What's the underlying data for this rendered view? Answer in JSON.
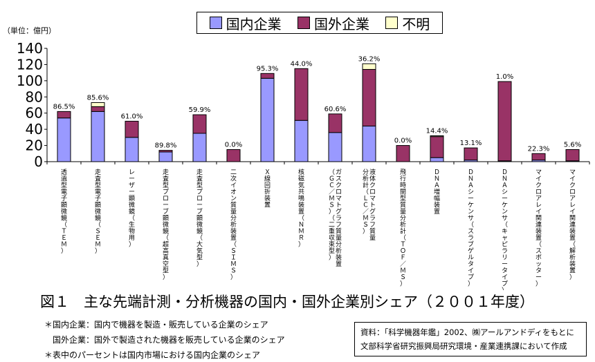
{
  "legend": [
    {
      "name": "国内企業",
      "color": "#9999ff"
    },
    {
      "name": "国外企業",
      "color": "#993366"
    },
    {
      "name": "不明",
      "color": "#ffffcc"
    }
  ],
  "unit_label": "（単位：億円）",
  "caption": "図１　主な先端計測・分析機器の国内・国外企業別シェア（２００１年度）",
  "notes": [
    "＊国内企業：国内で機器を製造・販売している企業のシェア",
    "　国外企業：国外で製造された機器を販売している企業のシェア",
    "＊表中のパーセントは国内市場における国内企業のシェア"
  ],
  "source": [
    "資料：「科学機器年鑑」2002、㈱アールアンドディをもとに",
    "文部科学省研究振興局研究環境・産業連携課において作成"
  ],
  "chart_data": {
    "type": "bar",
    "stacked": true,
    "ylim": [
      0,
      140
    ],
    "yticks": [
      0,
      20,
      40,
      60,
      80,
      100,
      120,
      140
    ],
    "categories": [
      "透過型電子顕微鏡（ＴＥＭ）",
      "走査型電子顕微鏡（ＳＥＭ）",
      "レーザー顕微鏡（生物用）",
      "走査型プローブ顕微鏡（超高真空型）",
      "走査型プローブ顕微鏡（大気型）",
      "二次イオン質量分析装置（ＳＩＭＳ）",
      "Ｘ線回折装置",
      "核磁気共鳴装置（ＮＭＲ）",
      "ガスクロマトグラフ質量分析装置（ＧＣ／ＭＳ）（二重収束型）",
      "液体クロマトグラフ質量分析計（ＬＣ／ＭＳ）",
      "飛行時間型質量分析計（ＴＯＦ／ＭＳ）",
      "ＤＮＡ増幅装置",
      "ＤＮＡシーケンサ（スラブゲルタイプ）",
      "ＤＮＡシーケンサ（キャピラリータイプ）",
      "マイクロアレイ関連装置（スポッター）",
      "マイクロアレイ関連装置（解析装置）"
    ],
    "series": [
      {
        "name": "国内企業",
        "values": [
          54,
          62,
          30,
          12,
          35,
          0,
          103,
          51,
          36,
          44,
          0,
          5,
          2,
          1,
          2,
          1
        ]
      },
      {
        "name": "国外企業",
        "values": [
          8,
          6,
          20,
          2,
          23,
          15,
          6,
          64,
          23,
          70,
          20,
          26,
          15,
          98,
          8,
          14
        ]
      },
      {
        "name": "不明",
        "values": [
          0,
          5,
          0,
          0,
          0,
          0,
          0,
          0,
          0,
          7,
          0,
          1,
          0,
          0,
          0,
          0
        ]
      }
    ],
    "data_labels": [
      "86.5%",
      "85.6%",
      "61.0%",
      "89.8%",
      "59.9%",
      "0.0%",
      "95.3%",
      "44.0%",
      "60.6%",
      "36.2%",
      "0.0%",
      "14.4%",
      "13.1%",
      "1.0%",
      "22.3%",
      "5.6%"
    ]
  }
}
